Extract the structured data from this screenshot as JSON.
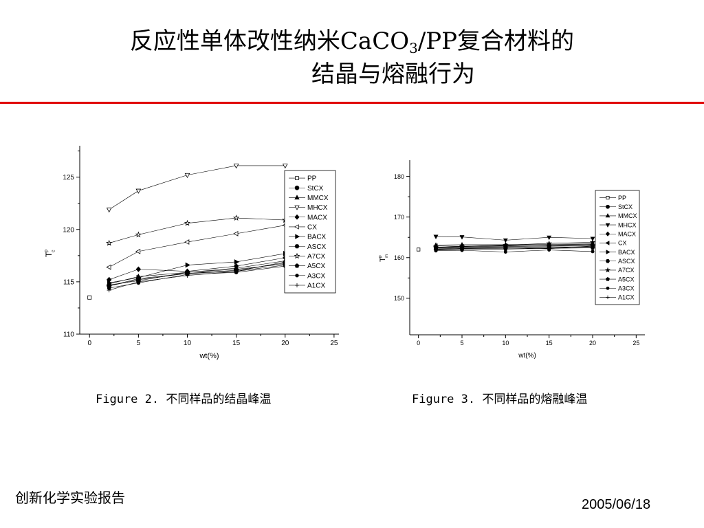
{
  "header": {
    "title_line1_pre": "反应性单体改性纳米CaCO",
    "title_line1_sub": "3",
    "title_line1_post": "/PP复合材料的",
    "title_line2": "结晶与熔融行为"
  },
  "captions": {
    "fig2_label": "Figure 2.",
    "fig2_text": "不同样品的结晶峰温",
    "fig3_label": "Figure 3.",
    "fig3_text": "不同样品的熔融峰温"
  },
  "footer": {
    "left": "创新化学实验报告",
    "right": "2005/06/18"
  },
  "colors": {
    "rule": "#e00000",
    "ink": "#000000"
  },
  "chart_data": [
    {
      "type": "line",
      "xlabel": "wt(%)",
      "ylabel": "T",
      "ylabel_sub": "c",
      "ylabel_sup": "p",
      "xlim": [
        -1,
        25.5
      ],
      "ylim": [
        110,
        128
      ],
      "xticks": [
        0,
        5,
        10,
        15,
        20,
        25
      ],
      "yticks": [
        110,
        115,
        120,
        125
      ],
      "legend_position": "top-right",
      "series": [
        {
          "name": "PP",
          "marker": "square-open",
          "x": [
            0
          ],
          "values": [
            113.5
          ]
        },
        {
          "name": "StCX",
          "marker": "circle",
          "x": [
            2,
            5,
            10,
            15,
            20
          ],
          "values": [
            114.6,
            115.3,
            115.8,
            116.1,
            116.8
          ]
        },
        {
          "name": "MMCX",
          "marker": "triangle-up",
          "x": [
            2,
            5,
            10,
            15,
            20
          ],
          "values": [
            114.8,
            115.5,
            115.9,
            116.3,
            117.0
          ]
        },
        {
          "name": "MHCX",
          "marker": "triangle-down-open",
          "x": [
            2,
            5,
            10,
            15,
            20
          ],
          "values": [
            121.9,
            123.7,
            125.2,
            126.1,
            126.1
          ]
        },
        {
          "name": "MACX",
          "marker": "diamond",
          "x": [
            2,
            5,
            10,
            15,
            20
          ],
          "values": [
            115.2,
            116.2,
            116.0,
            116.5,
            117.3
          ]
        },
        {
          "name": "CX",
          "marker": "triangle-left-open",
          "x": [
            2,
            5,
            10,
            15,
            20
          ],
          "values": [
            116.4,
            117.9,
            118.8,
            119.6,
            120.4
          ]
        },
        {
          "name": "BACX",
          "marker": "triangle-right",
          "x": [
            2,
            5,
            10,
            15,
            20
          ],
          "values": [
            114.9,
            115.4,
            116.6,
            116.9,
            117.7
          ]
        },
        {
          "name": "ASCX",
          "marker": "hexagon",
          "x": [
            2,
            5,
            10,
            15,
            20
          ],
          "values": [
            114.7,
            115.1,
            115.9,
            116.2,
            116.7
          ]
        },
        {
          "name": "A7CX",
          "marker": "star-open",
          "x": [
            2,
            5,
            10,
            15,
            20
          ],
          "values": [
            118.7,
            119.5,
            120.6,
            121.1,
            120.9
          ]
        },
        {
          "name": "A5CX",
          "marker": "pentagon",
          "x": [
            2,
            5,
            10,
            15,
            20
          ],
          "values": [
            114.6,
            115.2,
            115.8,
            116.0,
            116.9
          ]
        },
        {
          "name": "A3CX",
          "marker": "circle-small",
          "x": [
            2,
            5,
            10,
            15,
            20
          ],
          "values": [
            114.4,
            114.9,
            115.7,
            115.9,
            116.5
          ]
        },
        {
          "name": "A1CX",
          "marker": "plus",
          "x": [
            2,
            5,
            10,
            15,
            20
          ],
          "values": [
            114.2,
            115.0,
            115.6,
            116.0,
            116.6
          ]
        }
      ]
    },
    {
      "type": "line",
      "xlabel": "wt(%)",
      "ylabel": "T",
      "ylabel_sub": "m",
      "ylabel_sup": "p",
      "xlim": [
        -1,
        26
      ],
      "ylim": [
        141,
        184
      ],
      "xticks": [
        0,
        5,
        10,
        15,
        20,
        25
      ],
      "yticks": [
        150,
        160,
        170,
        180
      ],
      "legend_position": "top-right",
      "series": [
        {
          "name": "PP",
          "marker": "square-open",
          "x": [
            0
          ],
          "values": [
            162.0
          ]
        },
        {
          "name": "StCX",
          "marker": "circle",
          "x": [
            2,
            5,
            10,
            15,
            20
          ],
          "values": [
            162.3,
            162.4,
            162.5,
            162.6,
            162.7
          ]
        },
        {
          "name": "MMCX",
          "marker": "triangle-up",
          "x": [
            2,
            5,
            10,
            15,
            20
          ],
          "values": [
            163.1,
            163.2,
            163.2,
            163.3,
            163.4
          ]
        },
        {
          "name": "MHCX",
          "marker": "triangle-down",
          "x": [
            2,
            5,
            10,
            15,
            20
          ],
          "values": [
            165.2,
            165.1,
            164.3,
            165.0,
            164.7
          ]
        },
        {
          "name": "MACX",
          "marker": "diamond",
          "x": [
            2,
            5,
            10,
            15,
            20
          ],
          "values": [
            162.6,
            162.7,
            162.9,
            162.8,
            163.0
          ]
        },
        {
          "name": "CX",
          "marker": "triangle-left",
          "x": [
            2,
            5,
            10,
            15,
            20
          ],
          "values": [
            162.9,
            162.8,
            163.0,
            163.1,
            163.3
          ]
        },
        {
          "name": "BACX",
          "marker": "triangle-right",
          "x": [
            2,
            5,
            10,
            15,
            20
          ],
          "values": [
            162.4,
            162.6,
            162.7,
            162.9,
            163.2
          ]
        },
        {
          "name": "ASCX",
          "marker": "hexagon",
          "x": [
            2,
            5,
            10,
            15,
            20
          ],
          "values": [
            162.0,
            162.2,
            162.3,
            162.5,
            162.6
          ]
        },
        {
          "name": "A7CX",
          "marker": "star",
          "x": [
            2,
            5,
            10,
            15,
            20
          ],
          "values": [
            162.5,
            162.8,
            163.1,
            163.5,
            163.8
          ]
        },
        {
          "name": "A5CX",
          "marker": "pentagon",
          "x": [
            2,
            5,
            10,
            15,
            20
          ],
          "values": [
            161.9,
            162.0,
            162.1,
            162.3,
            162.4
          ]
        },
        {
          "name": "A3CX",
          "marker": "circle-small",
          "x": [
            2,
            5,
            10,
            15,
            20
          ],
          "values": [
            161.7,
            161.8,
            161.4,
            161.9,
            161.5
          ]
        },
        {
          "name": "A1CX",
          "marker": "plus",
          "x": [
            2,
            5,
            10,
            15,
            20
          ],
          "values": [
            162.1,
            162.3,
            162.4,
            162.2,
            162.9
          ]
        }
      ]
    }
  ]
}
